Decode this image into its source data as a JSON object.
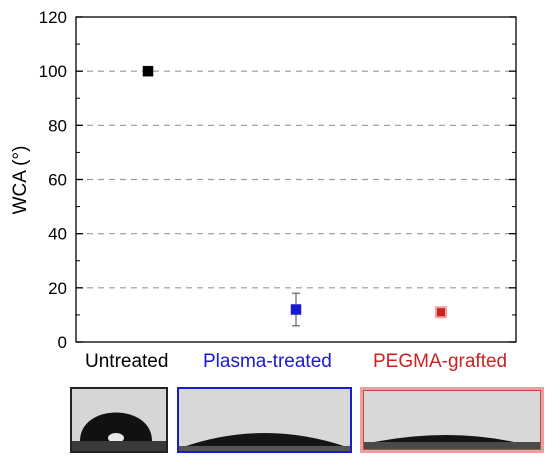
{
  "chart_data": {
    "type": "scatter",
    "ylabel": "WCA (°)",
    "ylim": [
      0,
      120
    ],
    "yticks": [
      0,
      20,
      40,
      60,
      80,
      100,
      120
    ],
    "grid": "horizontal dashed",
    "categories": [
      "Untreated",
      "Plasma-treated",
      "PEGMA-grafted"
    ],
    "values": [
      100,
      12,
      11
    ],
    "errors": [
      0,
      6,
      1.5
    ],
    "colors": [
      "#000000",
      "#1a1acc",
      "#cc2222"
    ]
  },
  "images": [
    {
      "name": "untreated-droplet-photo",
      "border_color": "#222222"
    },
    {
      "name": "plasma-treated-droplet-photo",
      "border_color": "#1a1acc"
    },
    {
      "name": "pegma-grafted-droplet-photo",
      "border_color": "#cc4444"
    }
  ]
}
